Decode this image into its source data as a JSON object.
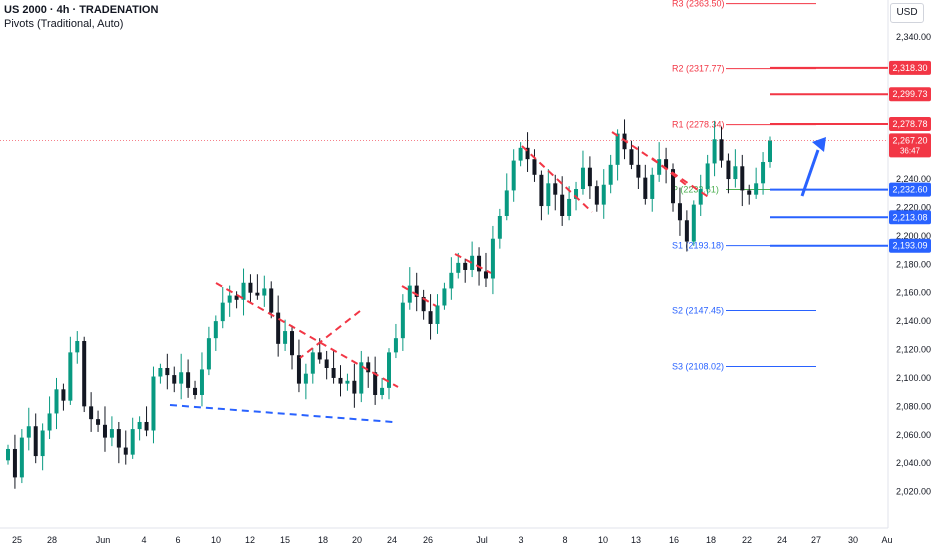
{
  "header": {
    "symbol_line": "US 2000 · 4h · TRADENATION",
    "indicator_line": "Pivots (Traditional, Auto)"
  },
  "currency_button": "USD",
  "colors": {
    "up": "#089981",
    "down": "#131722",
    "resistance": "#f23645",
    "support": "#2962ff",
    "pivot": "#4caf50",
    "trend_down": "#f23645",
    "trend_base": "#2962ff"
  },
  "chart_data": {
    "type": "candlestick",
    "ylim": [
      2000,
      2375
    ],
    "y_ticks": [
      "2,020.00",
      "2,040.00",
      "2,060.00",
      "2,080.00",
      "2,100.00",
      "2,120.00",
      "2,140.00",
      "2,160.00",
      "2,180.00",
      "2,200.00",
      "2,220.00",
      "2,240.00",
      "2,340.00"
    ],
    "x_ticks": [
      "25",
      "28",
      "Jun",
      "4",
      "6",
      "10",
      "12",
      "15",
      "18",
      "20",
      "24",
      "26",
      "Jul",
      "3",
      "8",
      "10",
      "13",
      "16",
      "18",
      "22",
      "24",
      "27",
      "30",
      "Au"
    ],
    "current_price": {
      "label": "2,267.20",
      "countdown": "36:47",
      "value": 2267.2
    },
    "price_badges": [
      {
        "label": "2,318.30",
        "value": 2318.3,
        "kind": "resistance"
      },
      {
        "label": "2,299.73",
        "value": 2299.73,
        "kind": "resistance"
      },
      {
        "label": "2,278.78",
        "value": 2278.78,
        "kind": "resistance"
      },
      {
        "label": "2,232.60",
        "value": 2232.6,
        "kind": "support"
      },
      {
        "label": "2,213.08",
        "value": 2213.08,
        "kind": "support"
      },
      {
        "label": "2,193.09",
        "value": 2193.09,
        "kind": "support"
      }
    ],
    "pivots": [
      {
        "label": "R3 (2363.50)",
        "value": 2363.5,
        "kind": "resistance"
      },
      {
        "label": "R2 (2317.77)",
        "value": 2317.77,
        "kind": "resistance"
      },
      {
        "label": "R1 (2278.34)",
        "value": 2278.34,
        "kind": "resistance"
      },
      {
        "label": "P (2232.61)",
        "value": 2232.61,
        "kind": "pivot"
      },
      {
        "label": "S1 (2193.18)",
        "value": 2193.18,
        "kind": "support"
      },
      {
        "label": "S2 (2147.45)",
        "value": 2147.45,
        "kind": "support"
      },
      {
        "label": "S3 (2108.02)",
        "value": 2108.02,
        "kind": "support"
      }
    ],
    "close_path": [
      2050,
      2030,
      2058,
      2066,
      2045,
      2063,
      2075,
      2092,
      2084,
      2118,
      2126,
      2080,
      2071,
      2067,
      2058,
      2064,
      2051,
      2046,
      2064,
      2069,
      2063,
      2101,
      2107,
      2102,
      2096,
      2104,
      2093,
      2088,
      2106,
      2128,
      2140,
      2153,
      2158,
      2155,
      2167,
      2160,
      2158,
      2163,
      2146,
      2124,
      2133,
      2116,
      2096,
      2103,
      2118,
      2113,
      2107,
      2100,
      2096,
      2098,
      2089,
      2111,
      2104,
      2088,
      2093,
      2118,
      2128,
      2153,
      2165,
      2157,
      2147,
      2138,
      2151,
      2163,
      2174,
      2181,
      2176,
      2186,
      2175,
      2170,
      2198,
      2214,
      2232,
      2253,
      2262,
      2254,
      2243,
      2221,
      2237,
      2229,
      2214,
      2226,
      2233,
      2248,
      2235,
      2222,
      2236,
      2250,
      2272,
      2261,
      2250,
      2241,
      2226,
      2243,
      2254,
      2247,
      2223,
      2211,
      2196,
      2222,
      2233,
      2251,
      2268,
      2253,
      2240,
      2249,
      2232,
      2229,
      2237,
      2252,
      2267
    ]
  }
}
